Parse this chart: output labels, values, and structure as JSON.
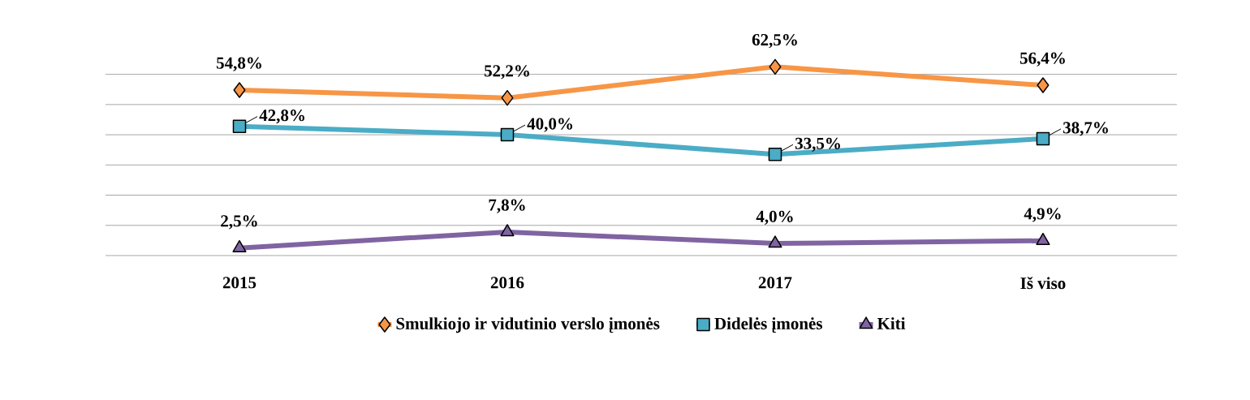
{
  "chart_data": {
    "type": "line",
    "categories": [
      "2015",
      "2016",
      "2017",
      "Iš viso"
    ],
    "series": [
      {
        "name": "Smulkiojo ir vidutinio verslo įmonės",
        "color": "#f79646",
        "marker": "diamond",
        "values": [
          54.8,
          52.2,
          62.5,
          56.4
        ],
        "value_labels": [
          "54,8%",
          "52,2%",
          "62,5%",
          "56,4%"
        ]
      },
      {
        "name": "Didelės įmonės",
        "color": "#4bacc6",
        "marker": "square",
        "values": [
          42.8,
          40.0,
          33.5,
          38.7
        ],
        "value_labels": [
          "42,8%",
          "40,0%",
          "33,5%",
          "38,7%"
        ]
      },
      {
        "name": "Kiti",
        "color": "#8064a2",
        "marker": "triangle",
        "values": [
          2.5,
          7.8,
          4.0,
          4.9
        ],
        "value_labels": [
          "2,5%",
          "7,8%",
          "4,0%",
          "4,9%"
        ]
      }
    ],
    "tick_labels": "x",
    "grid": "y",
    "legend": "bottom"
  }
}
